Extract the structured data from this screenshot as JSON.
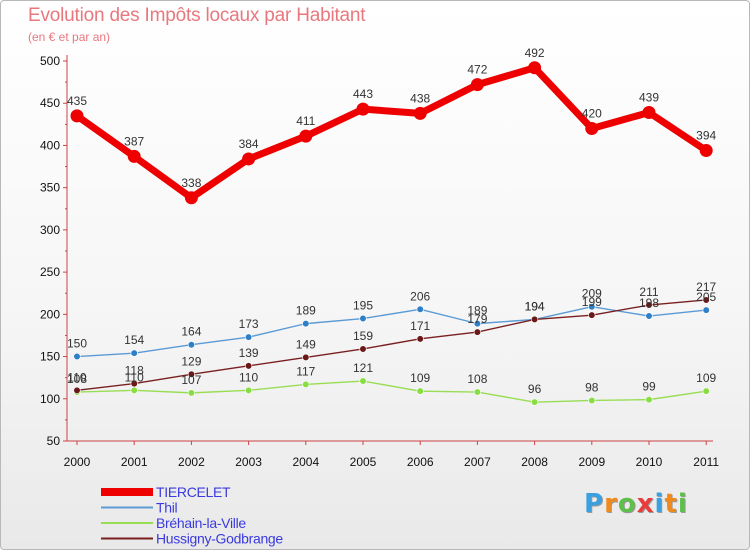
{
  "chart_data": {
    "type": "line",
    "title": "Evolution des Impôts locaux par Habitant",
    "subtitle": "(en € et par an)",
    "xlabel": "",
    "ylabel": "",
    "ylim": [
      50,
      500
    ],
    "yticks": [
      "50",
      "100",
      "150",
      "200",
      "250",
      "300",
      "350",
      "400",
      "450",
      "500"
    ],
    "categories": [
      "2000",
      "2001",
      "2002",
      "2003",
      "2004",
      "2005",
      "2006",
      "2007",
      "2008",
      "2009",
      "2010",
      "2011"
    ],
    "grid": false,
    "legend_position": "bottom-left",
    "series": [
      {
        "name": "TIERCELET",
        "color": "#ee0000",
        "values": [
          435,
          387,
          338,
          384,
          411,
          443,
          438,
          472,
          492,
          420,
          439,
          394
        ]
      },
      {
        "name": "Thil",
        "color": "#5b9bd5",
        "values": [
          150,
          154,
          164,
          173,
          189,
          195,
          206,
          189,
          194,
          209,
          198,
          205
        ]
      },
      {
        "name": "Bréhain-la-Ville",
        "color": "#99dd55",
        "values": [
          108,
          110,
          107,
          110,
          117,
          121,
          109,
          108,
          96,
          98,
          99,
          109
        ]
      },
      {
        "name": "Hussigny-Godbrange",
        "color": "#7a2020",
        "values": [
          110,
          118,
          129,
          139,
          149,
          159,
          171,
          179,
          194,
          199,
          211,
          217
        ]
      }
    ]
  },
  "logo": {
    "letters": [
      "P",
      "r",
      "o",
      "x",
      "i",
      "t",
      "i"
    ],
    "colors": [
      "#3aa0e0",
      "#f08a1c",
      "#5cc04a",
      "#e83c3c",
      "#3aa0e0",
      "#f08a1c",
      "#5cc04a"
    ]
  }
}
